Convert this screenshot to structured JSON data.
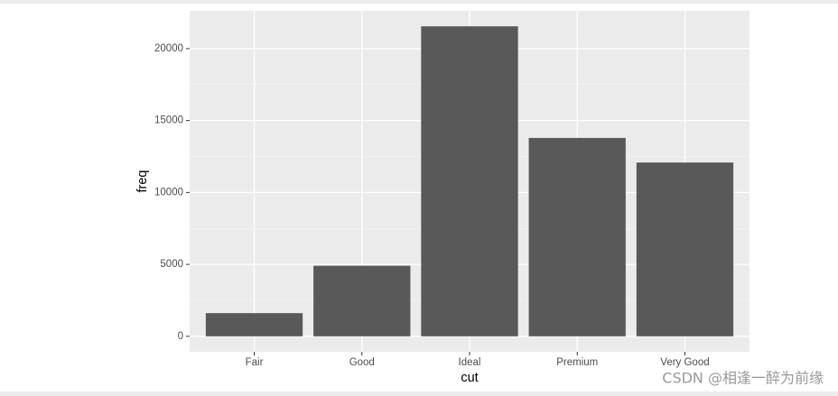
{
  "chart_data": {
    "type": "bar",
    "x_label": "cut",
    "y_label": "freq",
    "categories": [
      "Fair",
      "Good",
      "Ideal",
      "Premium",
      "Very Good"
    ],
    "values": [
      1610,
      4906,
      21551,
      13791,
      12082
    ],
    "color": "#595959",
    "ylim": [
      -1077.55,
      22628.55
    ],
    "yticks": [
      0,
      5000,
      10000,
      15000,
      20000
    ],
    "grid": true
  },
  "watermark": "CSDN @相逢一醉为前缘"
}
